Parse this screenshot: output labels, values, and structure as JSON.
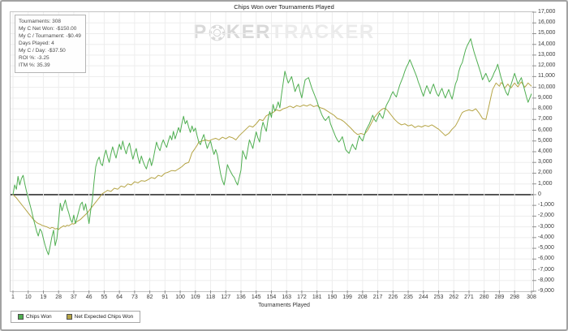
{
  "header": {
    "title": "Chips Won over Tournaments Played"
  },
  "watermark": {
    "p1": "P",
    "p2": "KER",
    "p3": "TRACKER"
  },
  "stats_box": {
    "lines": [
      "Tournaments: 308",
      "My C Net Won: -$150.00",
      "My C / Tournament: -$0.49",
      "Days Played: 4",
      "My C / Day: -$37.50",
      "ROI %: -3.25",
      "ITM %: 35.39"
    ]
  },
  "legend": {
    "items": [
      {
        "label": "Chips Won",
        "color": "#4fae51"
      },
      {
        "label": "Net Expected Chips Won",
        "color": "#b5a445"
      }
    ]
  },
  "colors": {
    "grid": "#ededed",
    "zero_line": "#4d4d4d",
    "plot_border": "#c3c3c3",
    "tick": "#909090",
    "label": "#3c3c3c",
    "watermark_dark": "#d9d9d9",
    "watermark_light": "#ebebeb",
    "frame": "#a2a2a2"
  },
  "chart_data": {
    "type": "line",
    "title": "Chips Won over Tournaments Played",
    "xlabel": "Tournaments Played",
    "ylabel": "",
    "xlim": [
      1,
      308
    ],
    "ylim": [
      -9000,
      17000
    ],
    "grid": true,
    "legend_position": "bottom-left",
    "y_axis_side": "right",
    "y_tick_step": 1000,
    "x_start": 1,
    "x_ticks": [
      1,
      10,
      19,
      28,
      37,
      46,
      55,
      64,
      73,
      82,
      91,
      100,
      109,
      118,
      127,
      136,
      145,
      154,
      163,
      172,
      181,
      190,
      199,
      208,
      217,
      226,
      235,
      244,
      253,
      262,
      271,
      280,
      289,
      298,
      308
    ],
    "series": [
      {
        "name": "Chips Won",
        "color": "#4fae51",
        "values": [
          0,
          900,
          500,
          1700,
          900,
          1500,
          1800,
          1000,
          300,
          -300,
          -900,
          -1500,
          -2200,
          -2800,
          -3400,
          -3850,
          -3200,
          -3450,
          -4100,
          -4700,
          -5200,
          -5600,
          -4800,
          -3950,
          -3300,
          -4750,
          -4100,
          -2500,
          -800,
          -1500,
          -1000,
          -500,
          -1200,
          -1700,
          -2300,
          -2600,
          -1900,
          -2700,
          -2100,
          -1500,
          -900,
          -700,
          -1450,
          -850,
          -1700,
          -2700,
          -1500,
          -500,
          1200,
          2600,
          3200,
          3500,
          2900,
          2700,
          3600,
          4150,
          3500,
          3000,
          3800,
          4450,
          3900,
          3400,
          4100,
          4700,
          4200,
          5000,
          4300,
          3800,
          4400,
          4800,
          4000,
          3300,
          3900,
          4300,
          3500,
          2900,
          3600,
          3100,
          2700,
          2400,
          3000,
          3400,
          2700,
          3300,
          4100,
          4900,
          4400,
          4100,
          4700,
          5100,
          4700,
          4400,
          5000,
          5500,
          5100,
          5900,
          5200,
          5700,
          6250,
          5800,
          6600,
          7300,
          6600,
          6900,
          6300,
          5800,
          6400,
          5900,
          6200,
          5500,
          4900,
          4650,
          5200,
          5600,
          4900,
          4300,
          4700,
          5000,
          4300,
          3750,
          4200,
          3700,
          2800,
          1900,
          1300,
          900,
          1800,
          2800,
          2400,
          2100,
          1800,
          1600,
          1200,
          900,
          1600,
          2300,
          4100,
          3700,
          3300,
          4200,
          5100,
          4700,
          4300,
          5100,
          5850,
          5300,
          4900,
          6000,
          6750,
          6300,
          5900,
          7000,
          7740,
          7200,
          8400,
          7800,
          8100,
          8640,
          8100,
          9300,
          10400,
          11500,
          10900,
          10400,
          10700,
          11000,
          10300,
          9600,
          10000,
          10300,
          9600,
          9000,
          9900,
          10700,
          10800,
          10900,
          10400,
          9900,
          9500,
          9100,
          8700,
          8200,
          7800,
          7400,
          7100,
          6900,
          7100,
          7300,
          6600,
          6200,
          5800,
          5400,
          5100,
          4900,
          5100,
          5400,
          4800,
          4200,
          4000,
          3850,
          4300,
          4700,
          4400,
          4200,
          4900,
          5500,
          5200,
          5000,
          5500,
          6000,
          6300,
          6600,
          7000,
          7400,
          7000,
          6800,
          7200,
          7600,
          7300,
          7100,
          7700,
          8300,
          8600,
          8900,
          9300,
          9600,
          9300,
          9100,
          9700,
          10200,
          10600,
          11000,
          11500,
          11900,
          12200,
          12570,
          12200,
          11800,
          11400,
          11000,
          10500,
          10100,
          9600,
          9170,
          9700,
          10150,
          9800,
          9400,
          9900,
          10300,
          9800,
          9400,
          9170,
          9600,
          9900,
          9400,
          9000,
          9400,
          9800,
          9300,
          8900,
          9600,
          10300,
          10700,
          11500,
          12000,
          12300,
          12900,
          13500,
          13900,
          14200,
          14530,
          13900,
          13300,
          12800,
          12300,
          11800,
          11300,
          10700,
          11000,
          11300,
          10900,
          10500,
          10700,
          11000,
          11400,
          11700,
          12150,
          11500,
          10900,
          10400,
          9900,
          9500,
          9250,
          9800,
          10300,
          10800,
          11300,
          10800,
          10300,
          10600,
          10900,
          10300,
          9700,
          9100,
          8600,
          9000,
          9400
        ]
      },
      {
        "name": "Net Expected Chips Won",
        "color": "#b5a445",
        "values": [
          0,
          -150,
          -300,
          -500,
          -700,
          -900,
          -1100,
          -1300,
          -1500,
          -1700,
          -1900,
          -2100,
          -2300,
          -2450,
          -2600,
          -2700,
          -2750,
          -2850,
          -2900,
          -2950,
          -3000,
          -3080,
          -3150,
          -3050,
          -3100,
          -3200,
          -3150,
          -3250,
          -3100,
          -3000,
          -2900,
          -2980,
          -2850,
          -2900,
          -2800,
          -2700,
          -2750,
          -2600,
          -2500,
          -2400,
          -2300,
          -2150,
          -2000,
          -1850,
          -1700,
          -1500,
          -1300,
          -1100,
          -900,
          -700,
          -500,
          -300,
          -100,
          100,
          200,
          300,
          400,
          350,
          300,
          450,
          600,
          550,
          500,
          650,
          800,
          750,
          700,
          850,
          1000,
          950,
          900,
          1050,
          1200,
          1150,
          1100,
          1200,
          1300,
          1280,
          1250,
          1320,
          1400,
          1500,
          1600,
          1550,
          1500,
          1650,
          1800,
          1750,
          1700,
          1850,
          2000,
          2050,
          2100,
          2180,
          2250,
          2230,
          2200,
          2300,
          2400,
          2500,
          2600,
          2750,
          2900,
          2950,
          3000,
          3450,
          3900,
          4120,
          4350,
          4600,
          4900,
          4950,
          5000,
          5050,
          5100,
          5050,
          5000,
          5080,
          5150,
          5200,
          5250,
          5180,
          5100,
          5230,
          5350,
          5280,
          5200,
          5300,
          5400,
          5350,
          5300,
          5200,
          5100,
          5300,
          5500,
          5650,
          5800,
          5950,
          6100,
          6250,
          6400,
          6350,
          6300,
          6450,
          6600,
          6800,
          7000,
          6950,
          6900,
          7130,
          7350,
          7430,
          7500,
          7580,
          7650,
          7780,
          7900,
          7850,
          7800,
          7900,
          8000,
          8050,
          8100,
          8180,
          8250,
          8180,
          8100,
          8200,
          8300,
          8250,
          8200,
          8280,
          8350,
          8300,
          8250,
          8330,
          8400,
          8300,
          8200,
          8250,
          8300,
          8200,
          8100,
          8050,
          8000,
          7900,
          7800,
          7700,
          7600,
          7500,
          7400,
          7250,
          7100,
          7050,
          7000,
          6900,
          6800,
          6650,
          6500,
          6350,
          6200,
          6030,
          5850,
          5730,
          5600,
          5650,
          5700,
          5650,
          5600,
          5800,
          6000,
          6300,
          6600,
          6900,
          7200,
          7400,
          7600,
          7750,
          7900,
          8000,
          8050,
          7950,
          7800,
          7600,
          7400,
          7200,
          7000,
          6850,
          6700,
          6600,
          6500,
          6550,
          6600,
          6500,
          6400,
          6450,
          6500,
          6380,
          6250,
          6330,
          6400,
          6350,
          6300,
          6380,
          6450,
          6400,
          6350,
          6430,
          6500,
          6400,
          6300,
          6200,
          6100,
          5950,
          5800,
          5650,
          5500,
          5600,
          5700,
          5900,
          6100,
          6250,
          6400,
          6700,
          7000,
          7350,
          7650,
          7730,
          7800,
          7850,
          7900,
          7850,
          7800,
          7900,
          8000,
          7800,
          7600,
          7350,
          7100,
          7050,
          7000,
          7700,
          8400,
          9100,
          9800,
          10100,
          10400,
          10250,
          10100,
          10450,
          10300,
          9900,
          10100,
          10300,
          10100,
          9950,
          10200,
          10400,
          10200,
          10050,
          10300,
          10500,
          10250,
          10000,
          10200,
          10400,
          10250,
          10100
        ]
      }
    ]
  }
}
